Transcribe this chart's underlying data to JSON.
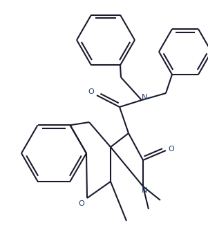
{
  "bg_color": "#ffffff",
  "line_color": "#1a1a2e",
  "line_width": 1.5,
  "figsize": [
    3.01,
    3.52
  ],
  "dpi": 100,
  "xlim": [
    0,
    301
  ],
  "ylim": [
    0,
    352
  ]
}
